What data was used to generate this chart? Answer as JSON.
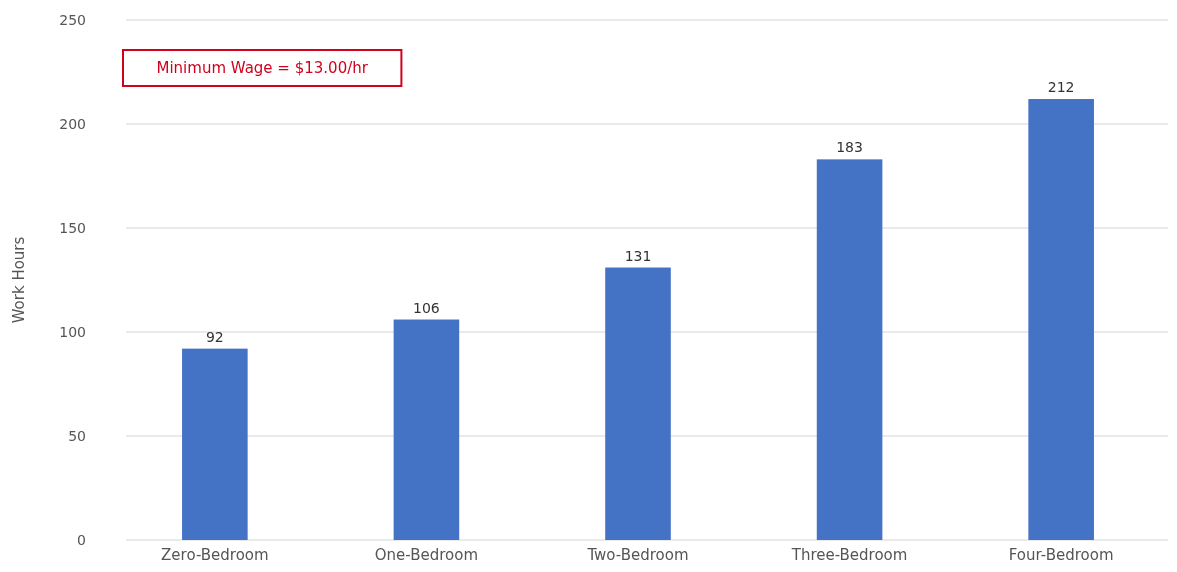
{
  "chart_data": {
    "type": "bar",
    "ylabel": "Work Hours",
    "categories": [
      "Zero-Bedroom",
      "One-Bedroom",
      "Two-Bedroom",
      "Three-Bedroom",
      "Four-Bedroom"
    ],
    "values": [
      92,
      106,
      131,
      183,
      212
    ],
    "color": "#4472c4",
    "ylim": [
      0,
      250
    ],
    "yticks": [
      0,
      50,
      100,
      150,
      200,
      250
    ],
    "grid": "y",
    "data_labels": true,
    "annotations": [
      "Minimum Wage = $13.00/hr"
    ]
  }
}
